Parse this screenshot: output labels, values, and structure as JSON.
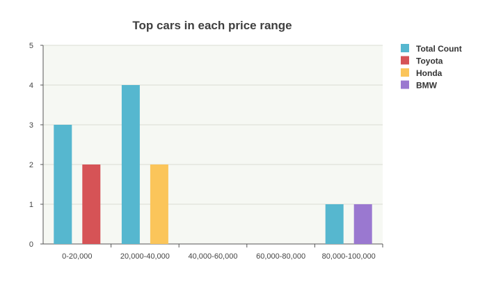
{
  "chart_data": {
    "type": "bar",
    "title": "Top cars in each price range",
    "xlabel": "",
    "ylabel": "",
    "categories": [
      "0-20,000",
      "20,000-40,000",
      "40,000-60,000",
      "60,000-80,000",
      "80,000-100,000"
    ],
    "ylim": [
      0,
      5
    ],
    "yticks": [
      0,
      1,
      2,
      3,
      4,
      5
    ],
    "grid": true,
    "legend_position": "top-right",
    "series": [
      {
        "name": "Total Count",
        "color": "#56b7cf",
        "values": [
          3,
          4,
          0,
          0,
          1
        ]
      },
      {
        "name": "Toyota",
        "color": "#d65356",
        "values": [
          2,
          0,
          0,
          0,
          0
        ]
      },
      {
        "name": "Honda",
        "color": "#fbc55a",
        "values": [
          0,
          2,
          0,
          0,
          0
        ]
      },
      {
        "name": "BMW",
        "color": "#9a78d0",
        "values": [
          0,
          0,
          0,
          0,
          1
        ]
      }
    ],
    "plot_background": "#f6f8f3",
    "grid_color": "#d9dcd3",
    "axis_color": "#555555"
  }
}
